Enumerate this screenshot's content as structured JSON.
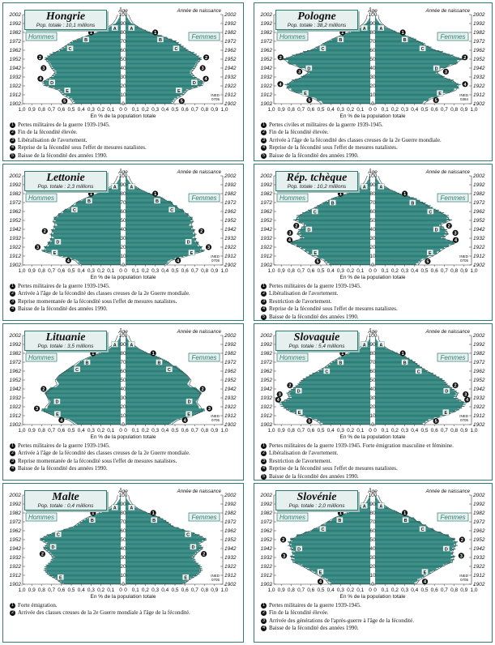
{
  "common": {
    "age_label": "Âge",
    "birth_label": "Année de naissance",
    "men_label": "Hommes",
    "women_label": "Femmes",
    "axis_caption": "En % de la population totale",
    "x_ticks": [
      "1,0",
      "0,9",
      "0,8",
      "0,7",
      "0,6",
      "0,5",
      "0,4",
      "0,3",
      "0,2",
      "0,1",
      "0"
    ],
    "age_ticks": [
      "100",
      "90",
      "80",
      "70",
      "60",
      "50",
      "40",
      "30",
      "20",
      "10",
      "0"
    ],
    "year_ticks": [
      "1902",
      "1912",
      "1922",
      "1932",
      "1942",
      "1952",
      "1962",
      "1972",
      "1982",
      "1992",
      "2002"
    ],
    "source": "INED",
    "colors": {
      "frame": "#2d7d73",
      "bars": "#2a7f78",
      "title_bg": "#e6f0ee",
      "outline": "#444444"
    }
  },
  "panels": [
    {
      "id": "hongrie",
      "title": "Hongrie",
      "subtitle": "Pop. totale : 10,1 millions",
      "code": "0705",
      "notes": [
        "Pertes militaires de la guerre 1939-1945.",
        "Fin de la fécondité élevée.",
        "Libéralisation de l'avortement.",
        "Reprise de la fécondité sous l'effet de mesures natalistes.",
        "Baisse de la fécondité des années 1990."
      ],
      "markers": [
        {
          "label": "A",
          "age": 85
        },
        {
          "label": "1",
          "age": 80
        },
        {
          "label": "B",
          "age": 72
        },
        {
          "label": "C",
          "age": 62
        },
        {
          "label": "2",
          "age": 52
        },
        {
          "label": "3",
          "age": 40
        },
        {
          "label": "4",
          "age": 28
        },
        {
          "label": "D",
          "age": 24
        },
        {
          "label": "E",
          "age": 15
        },
        {
          "label": "5",
          "age": 3
        }
      ]
    },
    {
      "id": "pologne",
      "title": "Pologne",
      "subtitle": "Pop. totale : 38,2 millions",
      "code": "0384",
      "notes": [
        "Pertes civiles et militaires de la guerre 1939-1945.",
        "Fin de la fécondité élevée.",
        "Arrivée à l'âge de la fécondité des classes creuses de la 2e Guerre mondiale.",
        "Reprise de la fécondité sous l'effet de mesures natalistes.",
        "Baisse de la fécondité des années 1990."
      ],
      "markers": [
        {
          "label": "A",
          "age": 85
        },
        {
          "label": "1",
          "age": 80
        },
        {
          "label": "B",
          "age": 72
        },
        {
          "label": "C",
          "age": 62
        },
        {
          "label": "2",
          "age": 52
        },
        {
          "label": "D",
          "age": 40
        },
        {
          "label": "3",
          "age": 36
        },
        {
          "label": "4",
          "age": 22
        },
        {
          "label": "E",
          "age": 12
        },
        {
          "label": "5",
          "age": 4
        }
      ]
    },
    {
      "id": "lettonie",
      "title": "Lettonie",
      "subtitle": "Pop. totale : 2,3 millions",
      "code": "0705",
      "notes": [
        "Pertes militaires de la guerre 1939-1945.",
        "Arrivée à l'âge de la fécondité des classes creuses de la 2e Guerre mondiale.",
        "Reprise momentanée de la fécondité sous l'effet de mesures natalistes.",
        "Baisse de la fécondité des années 1990."
      ],
      "markers": [
        {
          "label": "A",
          "age": 88
        },
        {
          "label": "1",
          "age": 80
        },
        {
          "label": "B",
          "age": 72
        },
        {
          "label": "C",
          "age": 62
        },
        {
          "label": "2",
          "age": 38
        },
        {
          "label": "D",
          "age": 26
        },
        {
          "label": "3",
          "age": 20
        },
        {
          "label": "E",
          "age": 14
        },
        {
          "label": "4",
          "age": 5
        }
      ]
    },
    {
      "id": "rep-tcheque",
      "title": "Rép. tchèque",
      "subtitle": "Pop. totale : 10,2 millions",
      "code": "0705",
      "notes": [
        "Pertes militaires de la guerre 1939-1945.",
        "Libéralisation de l'avortement.",
        "Restriction de l'avortement.",
        "Reprise de la fécondité sous l'effet de mesures natalistes.",
        "Baisse de la fécondité des années 1990."
      ],
      "markers": [
        {
          "label": "A",
          "age": 88
        },
        {
          "label": "1",
          "age": 80
        },
        {
          "label": "B",
          "age": 70
        },
        {
          "label": "C",
          "age": 60
        },
        {
          "label": "2",
          "age": 44
        },
        {
          "label": "D",
          "age": 40
        },
        {
          "label": "3",
          "age": 36
        },
        {
          "label": "4",
          "age": 28
        },
        {
          "label": "E",
          "age": 14
        },
        {
          "label": "5",
          "age": 4
        }
      ]
    },
    {
      "id": "lituanie",
      "title": "Lituanie",
      "subtitle": "Pop. totale : 3,5 millions",
      "code": "0705",
      "notes": [
        "Pertes militaires de la guerre 1939-1945.",
        "Arrivée à l'âge de la fécondité des classes creuses de la 2e Guerre mondiale.",
        "Reprise momentanée de la fécondité sous l'effet de mesures natalistes.",
        "Baisse de la fécondité des années 1990."
      ],
      "markers": [
        {
          "label": "A",
          "age": 90
        },
        {
          "label": "1",
          "age": 80
        },
        {
          "label": "B",
          "age": 70
        },
        {
          "label": "C",
          "age": 62
        },
        {
          "label": "2",
          "age": 40
        },
        {
          "label": "D",
          "age": 26
        },
        {
          "label": "3",
          "age": 18
        },
        {
          "label": "E",
          "age": 12
        },
        {
          "label": "4",
          "age": 5
        }
      ]
    },
    {
      "id": "slovaquie",
      "title": "Slovaquie",
      "subtitle": "Pop. totale : 5,4 millions",
      "code": "0705",
      "notes": [
        "Pertes militaires de la guerre 1939-1945. Forte émigration masculine et féminine.",
        "Libéralisation de l'avortement.",
        "Restriction de l'avortement.",
        "Reprise de la fécondité sous l'effet de mesures natalistes.",
        "Baisse de la fécondité des années 1990."
      ],
      "markers": [
        {
          "label": "A",
          "age": 90
        },
        {
          "label": "1",
          "age": 80
        },
        {
          "label": "B",
          "age": 70
        },
        {
          "label": "C",
          "age": 60
        },
        {
          "label": "2",
          "age": 44
        },
        {
          "label": "D",
          "age": 38
        },
        {
          "label": "3",
          "age": 34
        },
        {
          "label": "4",
          "age": 28
        },
        {
          "label": "E",
          "age": 14
        },
        {
          "label": "5",
          "age": 4
        }
      ]
    },
    {
      "id": "malte",
      "title": "Malte",
      "subtitle": "Pop. totale : 0,4 millions",
      "code": "0705",
      "notes": [
        "Forte émigration.",
        "Arrivée des classes creuses de la 2e Guerre mondiale à l'âge de la fécondité."
      ],
      "markers": [
        {
          "label": "A",
          "age": 86
        },
        {
          "label": "1",
          "age": 80
        },
        {
          "label": "B",
          "age": 72
        },
        {
          "label": "C",
          "age": 56
        },
        {
          "label": "D",
          "age": 42
        },
        {
          "label": "2",
          "age": 34
        },
        {
          "label": "E",
          "age": 8
        }
      ]
    },
    {
      "id": "slovenie",
      "title": "Slovénie",
      "subtitle": "Pop. totale : 2,0 millions",
      "code": "0705",
      "notes": [
        "Pertes militaires de la guerre 1939-1945.",
        "Fin de la fécondité élevée.",
        "Arrivée des générations de l'après-guerre à l'âge de la fécondité.",
        "Baisse de la fécondité des années 1990."
      ],
      "markers": [
        {
          "label": "A",
          "age": 88
        },
        {
          "label": "1",
          "age": 80
        },
        {
          "label": "B",
          "age": 72
        },
        {
          "label": "C",
          "age": 62
        },
        {
          "label": "2",
          "age": 50
        },
        {
          "label": "D",
          "age": 40
        },
        {
          "label": "3",
          "age": 32
        },
        {
          "label": "E",
          "age": 14
        },
        {
          "label": "4",
          "age": 3
        }
      ]
    }
  ],
  "chart_data": {
    "type": "bar",
    "orientation": "horizontal",
    "kind": "population pyramid",
    "xlabel": "En % de la population totale",
    "ylabel": "Âge",
    "xlim": [
      0,
      1.0
    ],
    "ylim": [
      0,
      100
    ],
    "series_names": [
      "Hommes",
      "Femmes"
    ],
    "secondary_axis": "Année de naissance",
    "countries": [
      "Hongrie",
      "Pologne",
      "Lettonie",
      "Rép. tchèque",
      "Lituanie",
      "Slovaquie",
      "Malte",
      "Slovénie"
    ],
    "age_profile_points": {
      "ages": [
        0,
        5,
        10,
        15,
        20,
        25,
        30,
        35,
        40,
        45,
        50,
        55,
        60,
        65,
        70,
        75,
        80,
        85,
        90,
        95,
        100
      ],
      "Hongrie": [
        0.47,
        0.5,
        0.58,
        0.62,
        0.76,
        0.78,
        0.7,
        0.66,
        0.7,
        0.72,
        0.76,
        0.7,
        0.62,
        0.55,
        0.48,
        0.36,
        0.22,
        0.12,
        0.05,
        0.02,
        0.0
      ],
      "Pologne": [
        0.48,
        0.55,
        0.68,
        0.82,
        0.85,
        0.8,
        0.68,
        0.62,
        0.7,
        0.82,
        0.88,
        0.75,
        0.6,
        0.5,
        0.42,
        0.32,
        0.2,
        0.1,
        0.04,
        0.01,
        0.0
      ],
      "Lettonie": [
        0.4,
        0.45,
        0.62,
        0.78,
        0.76,
        0.72,
        0.7,
        0.7,
        0.68,
        0.66,
        0.68,
        0.64,
        0.58,
        0.5,
        0.44,
        0.34,
        0.22,
        0.12,
        0.05,
        0.02,
        0.0
      ],
      "Rép. tchèque": [
        0.42,
        0.46,
        0.58,
        0.65,
        0.72,
        0.82,
        0.68,
        0.74,
        0.7,
        0.66,
        0.76,
        0.72,
        0.64,
        0.54,
        0.46,
        0.36,
        0.22,
        0.12,
        0.05,
        0.02,
        0.0
      ],
      "Lituanie": [
        0.45,
        0.52,
        0.68,
        0.78,
        0.76,
        0.72,
        0.74,
        0.76,
        0.7,
        0.64,
        0.66,
        0.62,
        0.55,
        0.48,
        0.42,
        0.32,
        0.2,
        0.11,
        0.05,
        0.02,
        0.0
      ],
      "Slovaquie": [
        0.48,
        0.55,
        0.7,
        0.82,
        0.88,
        0.9,
        0.82,
        0.84,
        0.78,
        0.72,
        0.68,
        0.6,
        0.52,
        0.44,
        0.38,
        0.3,
        0.2,
        0.1,
        0.04,
        0.01,
        0.0
      ],
      "Malte": [
        0.58,
        0.64,
        0.72,
        0.76,
        0.75,
        0.7,
        0.68,
        0.72,
        0.78,
        0.74,
        0.82,
        0.74,
        0.6,
        0.46,
        0.4,
        0.32,
        0.2,
        0.1,
        0.04,
        0.01,
        0.0
      ],
      "Slovénie": [
        0.4,
        0.44,
        0.52,
        0.6,
        0.68,
        0.78,
        0.8,
        0.78,
        0.8,
        0.82,
        0.8,
        0.72,
        0.6,
        0.5,
        0.42,
        0.34,
        0.22,
        0.12,
        0.05,
        0.02,
        0.0
      ]
    }
  }
}
